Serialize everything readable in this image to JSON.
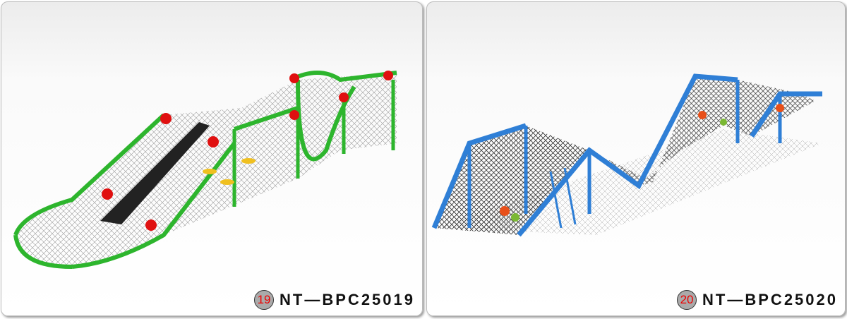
{
  "products": [
    {
      "number": "19",
      "code": "NT—BPC25019",
      "color": "#2db52d"
    },
    {
      "number": "20",
      "code": "NT—BPC25020",
      "color": "#2f7fd6"
    }
  ]
}
